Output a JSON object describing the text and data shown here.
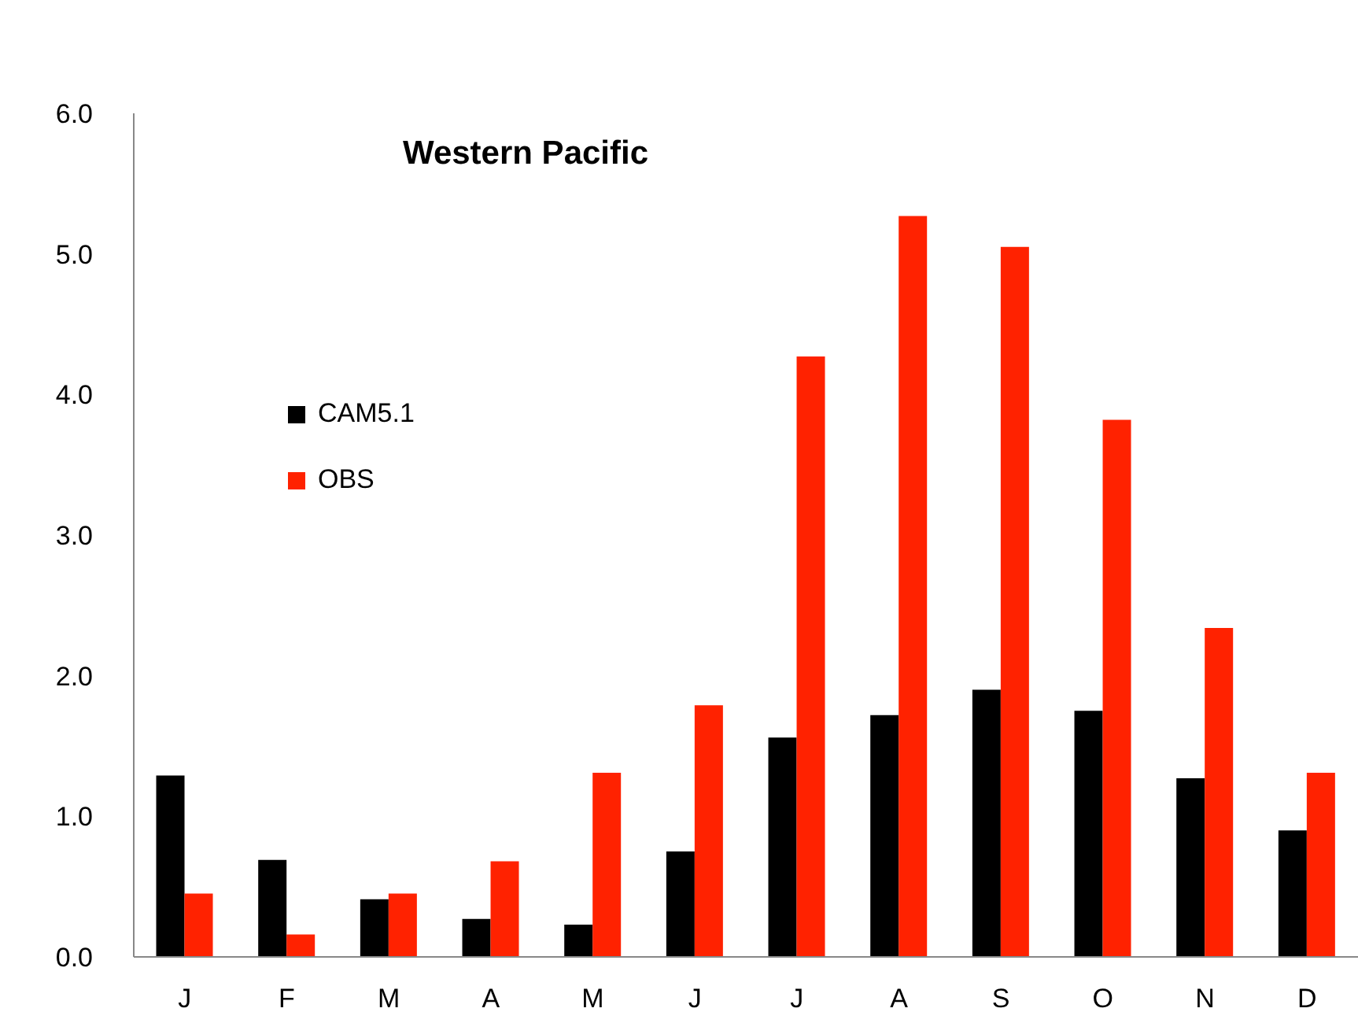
{
  "chart_data": {
    "type": "bar",
    "title": "Western Pacific",
    "categories": [
      "J",
      "F",
      "M",
      "A",
      "M",
      "J",
      "J",
      "A",
      "S",
      "O",
      "N",
      "D"
    ],
    "series": [
      {
        "name": "CAM5.1",
        "color": "#000000",
        "values": [
          1.29,
          0.69,
          0.41,
          0.27,
          0.23,
          0.75,
          1.56,
          1.72,
          1.9,
          1.75,
          1.27,
          0.9
        ]
      },
      {
        "name": "OBS",
        "color": "#ff2200",
        "values": [
          0.45,
          0.16,
          0.45,
          0.68,
          1.31,
          1.79,
          4.27,
          5.27,
          5.05,
          3.82,
          2.34,
          1.31
        ]
      }
    ],
    "ylim": [
      0,
      6
    ],
    "yticks": [
      {
        "value": 0,
        "label": "0.0"
      },
      {
        "value": 1,
        "label": "1.0"
      },
      {
        "value": 2,
        "label": "2.0"
      },
      {
        "value": 3,
        "label": "3.0"
      },
      {
        "value": 4,
        "label": "4.0"
      },
      {
        "value": 5,
        "label": "5.0"
      },
      {
        "value": 6,
        "label": "6.0"
      }
    ],
    "grid": false,
    "legend": "top left"
  }
}
